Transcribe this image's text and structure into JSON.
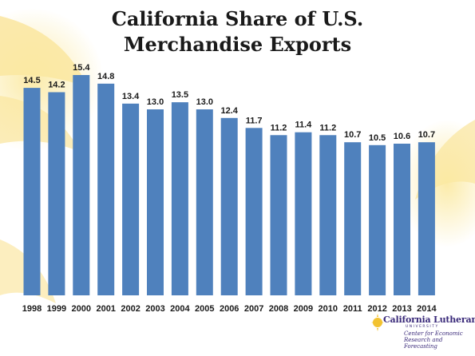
{
  "title_line1": "California Share of U.S.",
  "title_line2": "Merchandise Exports",
  "colors": {
    "bar": "#4f81bd",
    "accent": "#f7d65a",
    "logo": "#3a2a7a"
  },
  "logo": {
    "name": "California Lutheran",
    "university": "UNIVERSITY",
    "center": "Center for Economic Research and Forecasting"
  },
  "chart_data": {
    "type": "bar",
    "title": "California Share of U.S. Merchandise Exports",
    "xlabel": "",
    "ylabel": "",
    "categories": [
      "1998",
      "1999",
      "2000",
      "2001",
      "2002",
      "2003",
      "2004",
      "2005",
      "2006",
      "2007",
      "2008",
      "2009",
      "2010",
      "2011",
      "2012",
      "2013",
      "2014"
    ],
    "values": [
      14.5,
      14.2,
      15.4,
      14.8,
      13.4,
      13.0,
      13.5,
      13.0,
      12.4,
      11.7,
      11.2,
      11.4,
      11.2,
      10.7,
      10.5,
      10.6,
      10.7
    ],
    "value_labels": [
      "14.5",
      "14.2",
      "15.4",
      "14.8",
      "13.4",
      "13.0",
      "13.5",
      "13.0",
      "12.4",
      "11.7",
      "11.2",
      "11.4",
      "11.2",
      "10.7",
      "10.5",
      "10.6",
      "10.7"
    ],
    "ylim": [
      0,
      15.4
    ],
    "grid": false,
    "legend": "none"
  }
}
